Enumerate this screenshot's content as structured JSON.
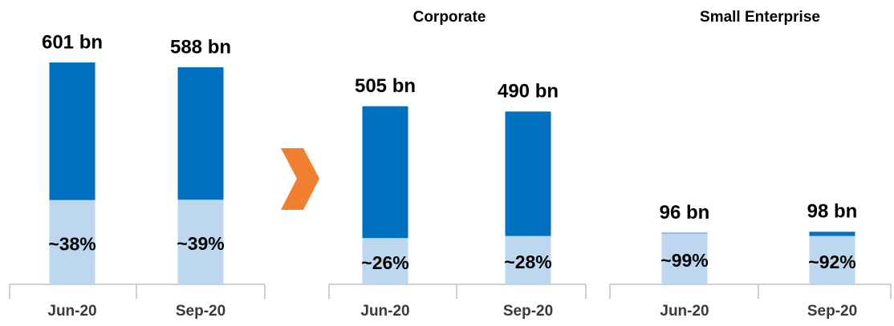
{
  "chart_data": [
    {
      "type": "bar",
      "categories": [
        "Jun-20",
        "Sep-20"
      ],
      "values": [
        601,
        588
      ],
      "value_labels": [
        "601 bn",
        "588 bn"
      ],
      "share": [
        38,
        39
      ],
      "share_labels": [
        "~38%",
        "~39%"
      ],
      "color": "#0070c0",
      "share_color": "#bdd7ee",
      "ylim": [
        0,
        640
      ]
    },
    {
      "type": "bar",
      "title": "Corporate",
      "categories": [
        "Jun-20",
        "Sep-20"
      ],
      "values": [
        505,
        490
      ],
      "value_labels": [
        "505 bn",
        "490 bn"
      ],
      "share": [
        26,
        28
      ],
      "share_labels": [
        "~26%",
        "~28%"
      ],
      "color": "#0070c0",
      "share_color": "#bdd7ee",
      "ylim": [
        0,
        670
      ]
    },
    {
      "type": "bar",
      "title": "Small Enterprise",
      "categories": [
        "Jun-20",
        "Sep-20"
      ],
      "values": [
        96,
        98
      ],
      "value_labels": [
        "96 bn",
        "98 bn"
      ],
      "share": [
        99,
        92
      ],
      "share_labels": [
        "~99%",
        "~92%"
      ],
      "color": "#0070c0",
      "share_color": "#bdd7ee",
      "ylim": [
        0,
        440
      ]
    }
  ]
}
